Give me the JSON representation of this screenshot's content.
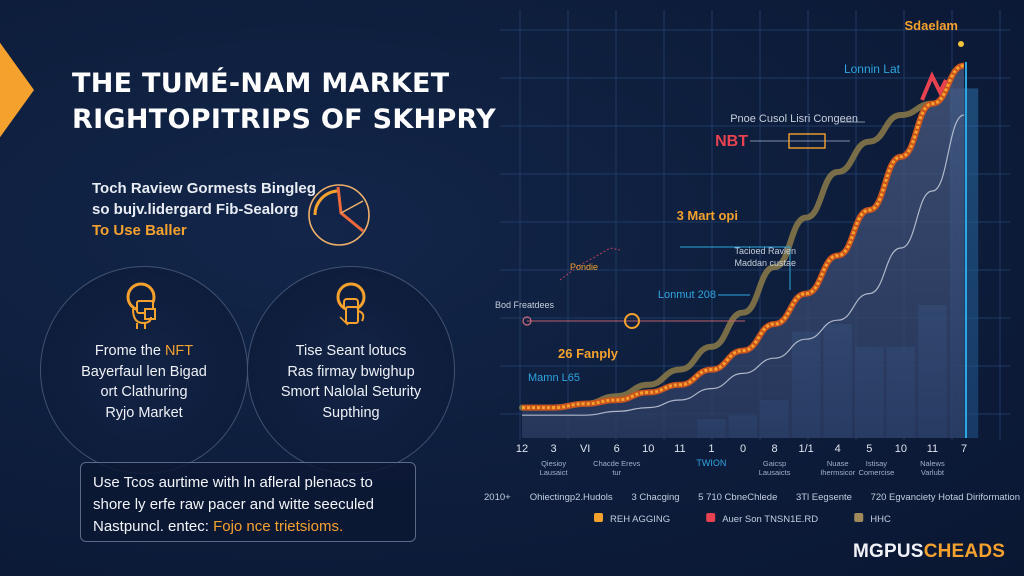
{
  "header": {
    "title_line1": "THE TUMÉ-NAM MARKET",
    "title_line2": "RIGHTOPITRIPS OF SKHPRY"
  },
  "intro": {
    "line1": "Toch Raview Gormests Bingleg",
    "line2": "so bujv.lidergard Fib-Sealorg",
    "line3_highlight": "To Use Baller",
    "icon": "pie-chart-icon"
  },
  "cards": [
    {
      "icon": "nft-wallet-icon",
      "line1_plain": "Frome the ",
      "line1_highlight": "NFT",
      "line2": "Bayerfaul len Bigad",
      "line3": "ort Clathuring",
      "line4": "Ryjo Market"
    },
    {
      "icon": "security-lock-icon",
      "line1": "Tise Seant lotucs",
      "line2": "Ras firmay bwighup",
      "line3": "Smort Nalolal Seturity",
      "line4": "Supthing"
    }
  ],
  "note": {
    "line1": "Use Tcos aurtime with ln afleral plenacs to",
    "line2": "shore ly erfe raw pacer and witte seeculed",
    "line3_plain": "Nastpuncl. entec: ",
    "line3_highlight": "Fojo nce trietsioms."
  },
  "brand": {
    "part1": "MGPUS",
    "part2": "CHEADS"
  },
  "colors": {
    "background": "#0d1d3b",
    "accent_orange": "#f5a12e",
    "accent_red": "#e8414f",
    "accent_blue": "#2ea6e0",
    "olive_line": "#8c7b4a",
    "area_fill": "#3a4a6e"
  },
  "chart_data": {
    "type": "area",
    "title": "Sdaelam",
    "xlabel": "",
    "ylabel": "",
    "x_tick_labels": [
      "12",
      "3",
      "VI",
      "6",
      "10",
      "11",
      "1",
      "0",
      "8",
      "1/1",
      "4",
      "5",
      "10",
      "11",
      "7"
    ],
    "grid": true,
    "ylim": [
      0,
      100
    ],
    "series": [
      {
        "name": "Orange market line",
        "color": "#f5a12e",
        "values": [
          8,
          8,
          9,
          10,
          12,
          14,
          18,
          23,
          30,
          38,
          48,
          60,
          74,
          88,
          98
        ]
      },
      {
        "name": "Olive trend line",
        "color": "#8c7b4a",
        "values": [
          8,
          8,
          9,
          11,
          14,
          18,
          24,
          33,
          45,
          58,
          70,
          78,
          85,
          88,
          null
        ]
      },
      {
        "name": "Thin white reference",
        "color": "#cfd6e4",
        "values": [
          6,
          6,
          6,
          7,
          8,
          10,
          13,
          17,
          21,
          26,
          31,
          38,
          50,
          65,
          85
        ]
      }
    ],
    "bars": {
      "name": "Background volume",
      "values": [
        0,
        0,
        0,
        0,
        0,
        0,
        5,
        6,
        10,
        28,
        30,
        24,
        24,
        35,
        92
      ]
    },
    "annotations": [
      {
        "text": "Sdaelam",
        "color": "#f5a12e",
        "at_index": 14
      },
      {
        "text": "Lonnin Lat",
        "color": "#2ea6e0",
        "at_index": 11
      },
      {
        "text": "Pnoe Cusol Lisri Congeen",
        "color": "#c8cfdc",
        "at_index": 11
      },
      {
        "text": "NBT",
        "color": "#e8414f",
        "at_index": 9
      },
      {
        "text": "3 Mart opi",
        "color": "#f5a12e",
        "at_index": 8
      },
      {
        "text": "Tacioed Ravlen",
        "color": "#c8cfdc",
        "at_index": 9
      },
      {
        "text": "Maddan custae",
        "color": "#c8cfdc",
        "at_index": 9
      },
      {
        "text": "Pondie",
        "color": "#f5a12e",
        "at_index": 4
      },
      {
        "text": "Lonmut 208",
        "color": "#2ea6e0",
        "at_index": 7
      },
      {
        "text": "Bod Freatdees",
        "color": "#c8cfdc",
        "at_index": 0
      },
      {
        "text": "26 Fanply",
        "color": "#f5a12e",
        "at_index": 4
      },
      {
        "text": "Mamn L65",
        "color": "#2ea6e0",
        "at_index": 3
      }
    ],
    "category_labels": [
      {
        "text": "Qiesioy Lausaict",
        "at_index": 1
      },
      {
        "text": "Chacde Erevs tur",
        "at_index": 3
      },
      {
        "text": "TWION",
        "at_index": 6
      },
      {
        "text": "Gaicsp Lausaicts",
        "at_index": 8
      },
      {
        "text": "Nuase Ihermsicor",
        "at_index": 10
      },
      {
        "text": "Istisay Comercise",
        "at_index": 11
      },
      {
        "text": "Nalews Varlubt",
        "at_index": 13
      }
    ],
    "footer_row": [
      "2010+",
      "Ohiectingp2.Hudols",
      "3 Chacging",
      "5 710 CbneChlede",
      "3Tl Eegsente",
      "720 Egvanciety Hotad Diriformation"
    ],
    "legend": [
      {
        "label": "REH AGGING",
        "color": "#f5a12e"
      },
      {
        "label": "Auer Son TNSN1E.RD",
        "color": "#e8414f"
      },
      {
        "label": "HHC",
        "color": "#a08a5a"
      }
    ],
    "legend_placement": "bottom"
  }
}
